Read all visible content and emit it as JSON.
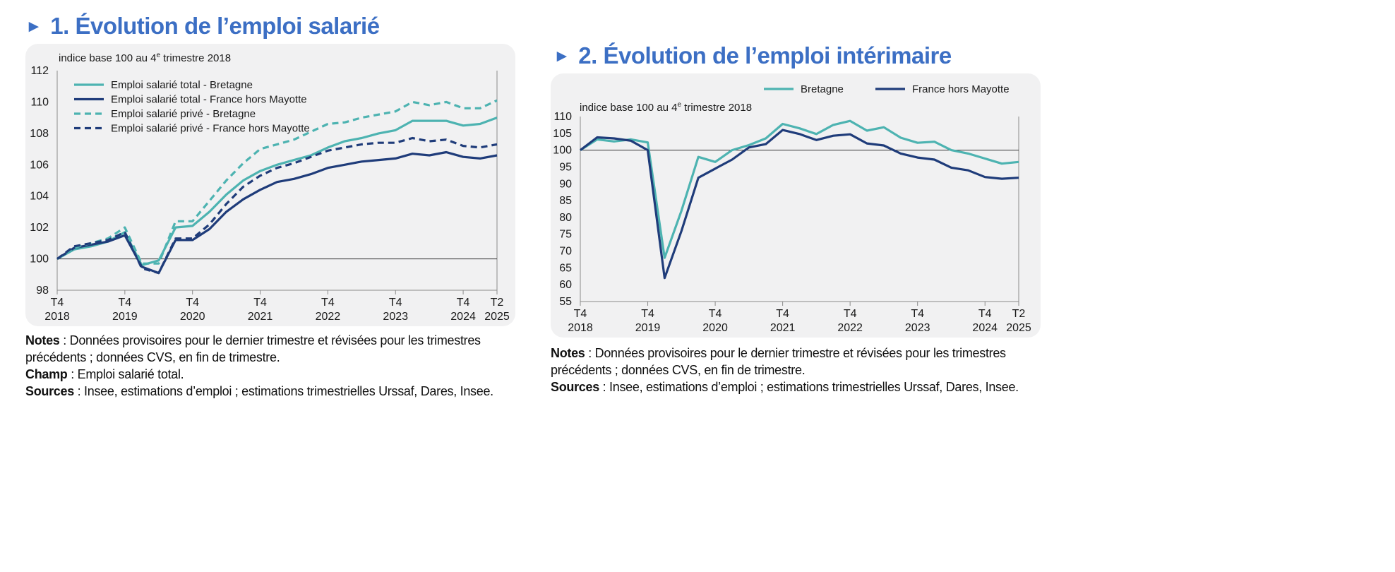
{
  "panels": [
    {
      "arrow": "►",
      "title": "1. Évolution de l’emploi salarié",
      "unit_label_main": "indice base 100 au 4",
      "unit_label_sup": "e",
      "unit_label_end": " trimestre 2018",
      "notes": [
        {
          "label": "Notes",
          "text": " : Données provisoires pour le dernier trimestre et révisées pour les trimestres précédents ; données CVS, en fin de trimestre."
        },
        {
          "label": "Champ",
          "text": " : Emploi salarié total."
        },
        {
          "label": "Sources",
          "text": " : Insee, estimations d’emploi ; estimations trimestrielles Urssaf, Dares, Insee."
        }
      ]
    },
    {
      "arrow": "►",
      "title": "2. Évolution de l’emploi intérimaire",
      "unit_label_main": "indice base 100 au 4",
      "unit_label_sup": "e",
      "unit_label_end": " trimestre 2018",
      "notes": [
        {
          "label": "Notes",
          "text": " : Données provisoires pour le dernier trimestre et révisées pour les trimestres précédents ; données CVS, en fin de trimestre."
        },
        {
          "label": "Sources",
          "text": " : Insee, estimations d’emploi ; estimations trimestrielles Urssaf, Dares, Insee."
        }
      ]
    }
  ],
  "colors": {
    "title": "#3c6fc4",
    "bretagne": "#4db3b1",
    "france": "#1f3c7a"
  },
  "chart_data": [
    {
      "type": "line",
      "title": "1. Évolution de l’emploi salarié",
      "ylabel": "indice base 100 au 4e trimestre 2018",
      "ylim": [
        98,
        112
      ],
      "yticks": [
        98,
        100,
        102,
        104,
        106,
        108,
        110,
        112
      ],
      "reference_line": 100,
      "legend_placement": "top-left",
      "x": [
        "T4 2018",
        "T1 2019",
        "T2 2019",
        "T3 2019",
        "T4 2019",
        "T1 2020",
        "T2 2020",
        "T3 2020",
        "T4 2020",
        "T1 2021",
        "T2 2021",
        "T3 2021",
        "T4 2021",
        "T1 2022",
        "T2 2022",
        "T3 2022",
        "T4 2022",
        "T1 2023",
        "T2 2023",
        "T3 2023",
        "T4 2023",
        "T1 2024",
        "T2 2024",
        "T3 2024",
        "T4 2024",
        "T1 2025",
        "T2 2025"
      ],
      "x_tick_labels": [
        {
          "x": "T4 2018",
          "line1": "T4",
          "line2": "2018"
        },
        {
          "x": "T4 2019",
          "line1": "T4",
          "line2": "2019"
        },
        {
          "x": "T4 2020",
          "line1": "T4",
          "line2": "2020"
        },
        {
          "x": "T4 2021",
          "line1": "T4",
          "line2": "2021"
        },
        {
          "x": "T4 2022",
          "line1": "T4",
          "line2": "2022"
        },
        {
          "x": "T4 2023",
          "line1": "T4",
          "line2": "2023"
        },
        {
          "x": "T4 2024",
          "line1": "T4",
          "line2": "2024"
        },
        {
          "x": "T2 2025",
          "line1": "T2",
          "line2": "2025"
        }
      ],
      "series": [
        {
          "name": "Emploi salarié total - Bretagne",
          "color": "#4db3b1",
          "dash": false,
          "values": [
            100,
            100.6,
            100.8,
            101.1,
            101.7,
            99.6,
            99.9,
            102.0,
            102.1,
            103.0,
            104.1,
            105.0,
            105.6,
            106.0,
            106.3,
            106.6,
            107.1,
            107.5,
            107.7,
            108.0,
            108.2,
            108.8,
            108.8,
            108.8,
            108.5,
            108.6,
            109.0
          ]
        },
        {
          "name": "Emploi salarié total - France hors Mayotte",
          "color": "#1f3c7a",
          "dash": false,
          "values": [
            100,
            100.7,
            100.9,
            101.1,
            101.5,
            99.5,
            99.1,
            101.2,
            101.2,
            101.9,
            103.0,
            103.8,
            104.4,
            104.9,
            105.1,
            105.4,
            105.8,
            106.0,
            106.2,
            106.3,
            106.4,
            106.7,
            106.6,
            106.8,
            106.5,
            106.4,
            106.6
          ]
        },
        {
          "name": "Emploi salarié privé - Bretagne",
          "color": "#4db3b1",
          "dash": true,
          "values": [
            100,
            100.7,
            101.0,
            101.3,
            102.0,
            99.7,
            99.7,
            102.4,
            102.4,
            103.7,
            105.0,
            106.1,
            107.0,
            107.3,
            107.6,
            108.1,
            108.6,
            108.7,
            109.0,
            109.2,
            109.4,
            110.0,
            109.8,
            110.0,
            109.6,
            109.6,
            110.1
          ]
        },
        {
          "name": "Emploi salarié privé - France hors Mayotte",
          "color": "#1f3c7a",
          "dash": true,
          "values": [
            100,
            100.8,
            101.0,
            101.2,
            101.7,
            99.4,
            99.1,
            101.3,
            101.3,
            102.2,
            103.5,
            104.6,
            105.3,
            105.8,
            106.1,
            106.5,
            106.9,
            107.1,
            107.3,
            107.4,
            107.4,
            107.7,
            107.5,
            107.6,
            107.2,
            107.1,
            107.3
          ]
        }
      ]
    },
    {
      "type": "line",
      "title": "2. Évolution de l’emploi intérimaire",
      "ylabel": "indice base 100 au 4e trimestre 2018",
      "ylim": [
        55,
        110
      ],
      "yticks": [
        55,
        60,
        65,
        70,
        75,
        80,
        85,
        90,
        95,
        100,
        105,
        110
      ],
      "reference_line": 100,
      "legend_placement": "top-right",
      "x": [
        "T4 2018",
        "T1 2019",
        "T2 2019",
        "T3 2019",
        "T4 2019",
        "T1 2020",
        "T2 2020",
        "T3 2020",
        "T4 2020",
        "T1 2021",
        "T2 2021",
        "T3 2021",
        "T4 2021",
        "T1 2022",
        "T2 2022",
        "T3 2022",
        "T4 2022",
        "T1 2023",
        "T2 2023",
        "T3 2023",
        "T4 2023",
        "T1 2024",
        "T2 2024",
        "T3 2024",
        "T4 2024",
        "T1 2025",
        "T2 2025"
      ],
      "x_tick_labels": [
        {
          "x": "T4 2018",
          "line1": "T4",
          "line2": "2018"
        },
        {
          "x": "T4 2019",
          "line1": "T4",
          "line2": "2019"
        },
        {
          "x": "T4 2020",
          "line1": "T4",
          "line2": "2020"
        },
        {
          "x": "T4 2021",
          "line1": "T4",
          "line2": "2021"
        },
        {
          "x": "T4 2022",
          "line1": "T4",
          "line2": "2022"
        },
        {
          "x": "T4 2023",
          "line1": "T4",
          "line2": "2023"
        },
        {
          "x": "T4 2024",
          "line1": "T4",
          "line2": "2024"
        },
        {
          "x": "T2 2025",
          "line1": "T2",
          "line2": "2025"
        }
      ],
      "series": [
        {
          "name": "Bretagne",
          "color": "#4db3b1",
          "dash": false,
          "values": [
            100,
            103.2,
            102.6,
            103.2,
            102.3,
            68.0,
            82.0,
            98.0,
            96.5,
            100.0,
            101.5,
            103.5,
            107.8,
            106.5,
            104.8,
            107.5,
            108.7,
            105.8,
            106.8,
            103.7,
            102.2,
            102.5,
            100.0,
            99.0,
            97.5,
            96.0,
            96.5
          ]
        },
        {
          "name": "France hors Mayotte",
          "color": "#1f3c7a",
          "dash": false,
          "values": [
            100,
            103.8,
            103.5,
            102.8,
            100.0,
            62.0,
            76.0,
            91.8,
            94.5,
            97.2,
            100.8,
            101.8,
            106.0,
            104.8,
            103.0,
            104.3,
            104.7,
            102.0,
            101.4,
            99.0,
            97.8,
            97.2,
            94.8,
            94.0,
            92.0,
            91.5,
            91.8
          ]
        }
      ]
    }
  ]
}
